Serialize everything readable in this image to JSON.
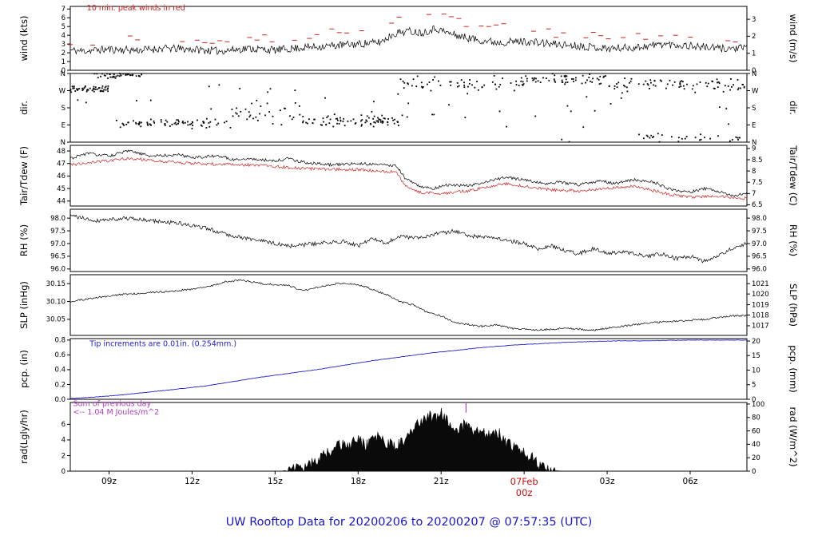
{
  "title": "UW Rooftop Data for 20200206  to  20200207 @ 07:57:35  (UTC)",
  "x_axis": {
    "range": [
      7.6,
      32.05
    ],
    "ticks": [
      {
        "t": 9,
        "label": "09z"
      },
      {
        "t": 12,
        "label": "12z"
      },
      {
        "t": 15,
        "label": "15z"
      },
      {
        "t": 18,
        "label": "18z"
      },
      {
        "t": 21,
        "label": "21z"
      },
      {
        "t": 24,
        "label": "00z",
        "label2": "07Feb",
        "color": "#cc1111"
      },
      {
        "t": 27,
        "label": "03z"
      },
      {
        "t": 30,
        "label": "06z"
      }
    ]
  },
  "colors": {
    "accent_blue": "#2222cc",
    "accent_red": "#cc2222",
    "accent_purple": "#b040c0",
    "trace_black": "#000000"
  },
  "chart_data": [
    {
      "name": "wind",
      "type": "line",
      "left_label": "wind (kts)",
      "right_label": "wind (m/s)",
      "ylim": [
        0,
        7.3
      ],
      "left_ticks": [
        [
          0,
          "0"
        ],
        [
          1,
          "1"
        ],
        [
          2,
          "2"
        ],
        [
          3,
          "3"
        ],
        [
          4,
          "4"
        ],
        [
          5,
          "5"
        ],
        [
          6,
          "6"
        ],
        [
          7,
          "7"
        ]
      ],
      "right_ticks": [
        [
          0,
          "0"
        ],
        [
          1.94,
          "1"
        ],
        [
          3.89,
          "2"
        ],
        [
          5.83,
          "3"
        ]
      ],
      "annotations": [
        {
          "t": 8.2,
          "y": 6.85,
          "text": "10 min. peak winds in red",
          "color": "#cc2222"
        }
      ],
      "series": [
        {
          "name": "wind-speed",
          "kind": "line",
          "color": "#000000",
          "width": 0.7,
          "noise": 0.45,
          "seed": 11,
          "x": [
            7.6,
            8,
            9,
            10,
            11,
            12,
            13,
            14,
            15,
            16,
            17,
            18,
            18.8,
            19.3,
            19.8,
            20.3,
            20.8,
            21.3,
            21.8,
            22.3,
            23,
            24,
            25,
            26,
            27,
            28,
            29,
            30,
            31,
            32.05
          ],
          "y": [
            2.3,
            2.2,
            2.4,
            2.3,
            2.5,
            2.4,
            2.2,
            2.5,
            2.3,
            2.6,
            2.8,
            3.0,
            3.2,
            4.2,
            4.5,
            4.3,
            4.8,
            4.2,
            3.8,
            3.5,
            3.2,
            3.3,
            3.0,
            2.8,
            2.5,
            2.6,
            3.0,
            2.8,
            2.5,
            2.5
          ]
        },
        {
          "name": "peak-wind-dashes",
          "kind": "dashes",
          "color": "#cc2222",
          "noise": 0.55,
          "seed": 12,
          "step": 0.27,
          "keep": 0.45,
          "x": [
            7.6,
            12,
            16,
            19,
            20,
            21,
            22,
            24,
            26,
            28,
            30,
            32.05
          ],
          "y": [
            3.4,
            3.5,
            3.9,
            5.5,
            6.6,
            6.0,
            5.2,
            4.6,
            4.0,
            3.9,
            4.1,
            3.6
          ]
        }
      ]
    },
    {
      "name": "dir",
      "type": "scatter",
      "left_label": "dir.",
      "right_label": "dir.",
      "ylim": [
        0,
        360
      ],
      "left_ticks": [
        [
          0,
          "N"
        ],
        [
          90,
          "E"
        ],
        [
          180,
          "S"
        ],
        [
          270,
          "W"
        ],
        [
          360,
          "N"
        ]
      ],
      "right_ticks": [
        [
          0,
          "N"
        ],
        [
          90,
          "E"
        ],
        [
          180,
          "S"
        ],
        [
          270,
          "W"
        ],
        [
          360,
          "N"
        ]
      ],
      "annotations": [],
      "series": [
        {
          "name": "wind-direction-points",
          "kind": "scatter",
          "color": "#000000",
          "seed": 21,
          "clusters": [
            [
              7.6,
              9.0,
              280,
              22,
              50
            ],
            [
              8.4,
              10.2,
              350,
              14,
              40
            ],
            [
              9.4,
              13.2,
              100,
              22,
              70
            ],
            [
              13.0,
              16.0,
              160,
              60,
              30
            ],
            [
              16.0,
              19.6,
              110,
              30,
              80
            ],
            [
              19.5,
              24.0,
              300,
              45,
              60
            ],
            [
              24.0,
              27.0,
              330,
              30,
              55
            ],
            [
              27.0,
              32.0,
              300,
              40,
              75
            ],
            [
              28.0,
              32.0,
              25,
              20,
              30
            ],
            [
              7.6,
              32.0,
              180,
              150,
              50
            ]
          ]
        }
      ]
    },
    {
      "name": "temp",
      "type": "line",
      "left_label": "Tair/Tdew (F)",
      "right_label": "Tair/Tdew (C)",
      "ylim": [
        43.6,
        48.45
      ],
      "left_ticks": [
        [
          44,
          "44"
        ],
        [
          45,
          "45"
        ],
        [
          46,
          "46"
        ],
        [
          47,
          "47"
        ],
        [
          48,
          "48"
        ]
      ],
      "right_ticks": [
        [
          43.7,
          "6.5"
        ],
        [
          44.6,
          "7"
        ],
        [
          45.5,
          "7.5"
        ],
        [
          46.4,
          "8"
        ],
        [
          47.3,
          "8.5"
        ],
        [
          48.2,
          "9"
        ]
      ],
      "annotations": [],
      "series": [
        {
          "name": "tair",
          "kind": "line",
          "color": "#000000",
          "width": 0.7,
          "noise": 0.12,
          "seed": 31,
          "x": [
            7.6,
            8.2,
            9,
            9.7,
            10.5,
            11.5,
            12,
            13,
            13.5,
            14,
            15,
            15.5,
            16,
            17,
            18,
            19,
            19.4,
            19.7,
            20.2,
            20.7,
            21.2,
            22,
            22.7,
            23.3,
            24,
            24.7,
            25.3,
            26,
            26.7,
            27.3,
            28,
            28.7,
            29.3,
            30,
            30.5,
            31,
            31.5,
            32.05
          ],
          "y": [
            47.4,
            47.8,
            47.6,
            48.0,
            47.6,
            47.7,
            47.5,
            47.6,
            47.3,
            47.4,
            47.2,
            47.4,
            47.1,
            46.9,
            47.0,
            46.9,
            46.8,
            45.8,
            45.2,
            45.0,
            45.3,
            45.2,
            45.6,
            45.9,
            45.7,
            45.4,
            45.5,
            45.3,
            45.6,
            45.4,
            45.7,
            45.5,
            44.9,
            44.7,
            45.0,
            44.8,
            44.4,
            44.6
          ]
        },
        {
          "name": "tdew",
          "kind": "line",
          "color": "#cc2222",
          "width": 0.7,
          "noise": 0.12,
          "seed": 32,
          "x": [
            7.6,
            9.7,
            12,
            14,
            16,
            18,
            19.4,
            19.7,
            20.2,
            21,
            22,
            23.3,
            24,
            25,
            26,
            27,
            28,
            29.3,
            30,
            31,
            32.05
          ],
          "y": [
            46.9,
            47.4,
            47.0,
            46.9,
            46.6,
            46.5,
            46.3,
            45.2,
            44.7,
            44.6,
            44.8,
            45.4,
            45.2,
            44.9,
            44.8,
            45.0,
            45.2,
            44.5,
            44.3,
            44.4,
            44.2
          ]
        }
      ]
    },
    {
      "name": "rh",
      "type": "line",
      "left_label": "RH (%)",
      "right_label": "RH (%)",
      "ylim": [
        95.9,
        98.35
      ],
      "left_ticks": [
        [
          96,
          "96.0"
        ],
        [
          96.5,
          "96.5"
        ],
        [
          97,
          "97.0"
        ],
        [
          97.5,
          "97.5"
        ],
        [
          98,
          "98.0"
        ]
      ],
      "right_ticks": [
        [
          96,
          "96.0"
        ],
        [
          96.5,
          "96.5"
        ],
        [
          97,
          "97.0"
        ],
        [
          97.5,
          "97.5"
        ],
        [
          98,
          "98.0"
        ]
      ],
      "annotations": [],
      "series": [
        {
          "name": "rh",
          "kind": "line",
          "color": "#000000",
          "width": 0.7,
          "noise": 0.08,
          "seed": 41,
          "x": [
            7.6,
            8.5,
            9.5,
            10.5,
            11.5,
            12.5,
            13.5,
            14.5,
            15.5,
            16.5,
            17.5,
            18,
            18.5,
            19,
            19.5,
            20,
            21,
            21.5,
            22,
            23,
            24,
            24.5,
            25,
            25.5,
            26,
            26.5,
            27,
            27.5,
            28,
            28.5,
            29,
            29.5,
            30,
            30.5,
            31,
            31.5,
            32.05
          ],
          "y": [
            98.1,
            97.9,
            98.0,
            97.9,
            97.8,
            97.6,
            97.3,
            97.1,
            96.9,
            97.0,
            97.1,
            96.9,
            97.2,
            97.0,
            97.3,
            97.2,
            97.4,
            97.5,
            97.3,
            97.2,
            97.0,
            96.8,
            96.9,
            96.7,
            96.6,
            96.8,
            96.6,
            96.7,
            96.6,
            96.5,
            96.6,
            96.4,
            96.5,
            96.3,
            96.5,
            96.8,
            97.0
          ]
        }
      ]
    },
    {
      "name": "slp",
      "type": "line",
      "left_label": "SLP (inHg)",
      "right_label": "SLP (hPa)",
      "ylim": [
        30.005,
        30.175
      ],
      "left_ticks": [
        [
          30.05,
          "30.05"
        ],
        [
          30.1,
          "30.10"
        ],
        [
          30.15,
          "30.15"
        ]
      ],
      "right_ticks": [
        [
          30.032,
          "1017"
        ],
        [
          30.062,
          "1018"
        ],
        [
          30.091,
          "1019"
        ],
        [
          30.121,
          "1020"
        ],
        [
          30.15,
          "1021"
        ]
      ],
      "annotations": [],
      "series": [
        {
          "name": "slp",
          "kind": "line",
          "color": "#000000",
          "width": 0.7,
          "noise": 0.0025,
          "seed": 51,
          "x": [
            7.6,
            8.5,
            9.5,
            10.5,
            11.5,
            12.5,
            13.2,
            13.8,
            14.5,
            15.5,
            16,
            16.5,
            17.2,
            17.8,
            18.3,
            19,
            19.5,
            20,
            20.5,
            21,
            21.5,
            22,
            22.5,
            23,
            23.5,
            24.5,
            25.5,
            26.5,
            27.5,
            28.5,
            29.5,
            30.5,
            31.5,
            32.05
          ],
          "y": [
            30.1,
            30.11,
            30.12,
            30.125,
            30.13,
            30.14,
            30.155,
            30.16,
            30.15,
            30.145,
            30.13,
            30.14,
            30.15,
            30.15,
            30.14,
            30.12,
            30.1,
            30.09,
            30.07,
            30.06,
            30.04,
            30.035,
            30.03,
            30.035,
            30.025,
            30.02,
            30.025,
            30.02,
            30.03,
            30.04,
            30.045,
            30.05,
            30.06,
            30.06
          ]
        }
      ]
    },
    {
      "name": "pcp",
      "type": "line",
      "left_label": "pcp. (in)",
      "right_label": "pcp. (mm)",
      "ylim": [
        0,
        0.82
      ],
      "left_ticks": [
        [
          0,
          "0.0"
        ],
        [
          0.2,
          "0.2"
        ],
        [
          0.4,
          "0.4"
        ],
        [
          0.6,
          "0.6"
        ],
        [
          0.8,
          "0.8"
        ]
      ],
      "right_ticks": [
        [
          0,
          "0"
        ],
        [
          0.197,
          "5"
        ],
        [
          0.394,
          "10"
        ],
        [
          0.591,
          "15"
        ],
        [
          0.787,
          "20"
        ]
      ],
      "annotations": [
        {
          "t": 8.3,
          "y": 0.72,
          "text": "Tip increments are 0.01in. (0.254mm.)",
          "color": "#2222cc"
        }
      ],
      "series": [
        {
          "name": "precip-cumulative",
          "kind": "line",
          "color": "#2222cc",
          "width": 0.9,
          "noise": 0.003,
          "seed": 61,
          "x": [
            7.6,
            8.5,
            9.5,
            10.5,
            11.5,
            12.5,
            13.5,
            14.5,
            15.5,
            16.5,
            17.5,
            18.5,
            19.5,
            20.5,
            21.5,
            22.5,
            23.5,
            24.5,
            25.5,
            26.5,
            27.5,
            28.5,
            30,
            32.05
          ],
          "y": [
            0.01,
            0.03,
            0.06,
            0.1,
            0.14,
            0.18,
            0.24,
            0.3,
            0.35,
            0.4,
            0.46,
            0.52,
            0.57,
            0.62,
            0.66,
            0.7,
            0.73,
            0.75,
            0.77,
            0.78,
            0.79,
            0.79,
            0.8,
            0.8
          ]
        }
      ]
    },
    {
      "name": "rad",
      "type": "area",
      "left_label": "rad(Lgly/hr)",
      "right_label": "rad (W/m^2)",
      "ylim": [
        0,
        8.8
      ],
      "left_ticks": [
        [
          0,
          "0"
        ],
        [
          2,
          "2"
        ],
        [
          4,
          "4"
        ],
        [
          6,
          "6"
        ]
      ],
      "right_ticks": [
        [
          0,
          "0"
        ],
        [
          1.72,
          "20"
        ],
        [
          3.44,
          "40"
        ],
        [
          5.16,
          "60"
        ],
        [
          6.88,
          "80"
        ],
        [
          8.6,
          "100"
        ]
      ],
      "annotations": [
        {
          "t": 7.7,
          "y": 8.35,
          "text": "Sum of previous day",
          "color": "#b040c0"
        },
        {
          "t": 7.7,
          "y": 7.25,
          "text": "<-- 1.04 M Joules/m^2",
          "color": "#b040c0"
        },
        {
          "kind": "vline",
          "t": 21.9,
          "y1": 8.7,
          "y2": 7.5,
          "color": "#b040c0"
        }
      ],
      "series": [
        {
          "name": "solar-radiation",
          "kind": "area",
          "color": "#0a0a0a",
          "noise": 0.8,
          "seed": 71,
          "x": [
            7.6,
            15.2,
            15.6,
            16,
            16.5,
            17,
            17.3,
            17.6,
            18,
            18.3,
            18.7,
            19,
            19.3,
            19.7,
            20,
            20.3,
            20.5,
            20.8,
            21,
            21.3,
            21.6,
            21.9,
            22.2,
            22.5,
            22.8,
            23.1,
            23.4,
            23.7,
            24,
            24.3,
            24.6,
            24.9,
            25.2,
            25.5,
            32.05
          ],
          "y": [
            0,
            0,
            0.2,
            0.6,
            1.5,
            2.5,
            3.5,
            3.0,
            4.0,
            3.2,
            4.5,
            3.8,
            3.0,
            4.2,
            5.5,
            6.5,
            7.2,
            6.8,
            7.4,
            6.2,
            5.4,
            6.0,
            4.8,
            5.2,
            4.4,
            4.8,
            3.6,
            2.8,
            2.4,
            1.6,
            0.8,
            0.3,
            0.05,
            0,
            0
          ]
        }
      ]
    }
  ]
}
